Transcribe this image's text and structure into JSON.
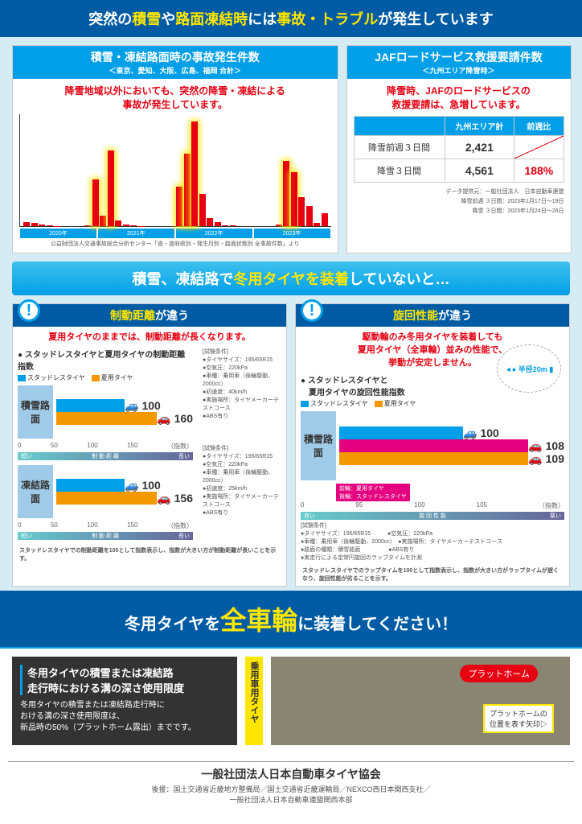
{
  "top_banner": {
    "t1": "突然の",
    "t2": "積雪",
    "t3": "や",
    "t4": "路面凍結時",
    "t5": "には",
    "t6": "事故・トラブル",
    "t7": "が発生しています"
  },
  "p1": {
    "title": "積雪・凍結路面時の事故発生件数",
    "sub": "＜東京、愛知、大阪、広島、福岡 合計＞",
    "lead1": "降雪地域以外においても、突然の降雪・凍結による",
    "lead2": "事故が発生しています。",
    "bars": [
      12,
      8,
      5,
      2,
      1,
      0,
      0,
      0,
      2,
      130,
      28,
      210,
      15,
      5,
      2,
      1,
      0,
      0,
      0,
      0,
      110,
      200,
      290,
      90,
      22,
      12,
      3,
      2,
      0,
      0,
      0,
      0,
      0,
      5,
      180,
      150,
      80,
      55,
      10,
      35
    ],
    "hl": [
      9,
      11,
      20,
      21,
      22,
      34,
      35
    ],
    "years": [
      "2020年",
      "2021年",
      "2022年",
      "2023年"
    ],
    "src": "公益財団法人交通事故総合分析センター「道・道府県別・発生月別・路面状態別 全事故件数」より"
  },
  "p2": {
    "title": "JAFロードサービス救援要請件数",
    "sub": "＜九州エリア降雪時＞",
    "lead1": "降雪時、JAFのロードサービスの",
    "lead2": "救援要請は、急増しています。",
    "col1": "九州エリア計",
    "col2": "前週比",
    "r1": "降雪前週３日間",
    "v1": "2,421",
    "r2": "降雪３日間",
    "v2": "4,561",
    "pct": "188%",
    "n1": "データ提供元：一般社団法人　日本自動車連盟",
    "n2": "降雪前週 ３日間：2023年1月17日〜19日",
    "n3": "降雪 ３日間：2023年1月24日〜26日"
  },
  "b2": {
    "t1": "積雪、凍結路で",
    "t2": "冬用タイヤを装着",
    "t3": "していないと…"
  },
  "pL": {
    "head_t1": "制動距離",
    "head_t2": "が違う",
    "lead": "夏用タイヤのままでは、制動距離が長くなります。",
    "sub": "● スタッドレスタイヤと夏用タイヤの制動距離指数",
    "lg1": "スタッドレスタイヤ",
    "lg2": "夏用タイヤ",
    "r1": {
      "label": "積雪路面",
      "winter": 100,
      "summer": 160
    },
    "r2": {
      "label": "凍結路面",
      "winter": 100,
      "summer": 156
    },
    "ax": [
      "0",
      "50",
      "100",
      "150",
      "（指数）"
    ],
    "gr_l": "短い",
    "gr_c": "制 動 距 離",
    "gr_r": "長い",
    "c1": [
      "[試験条件]",
      "●タイヤサイズ：195/65R15",
      "●空気圧：220kPa",
      "●車種：乗用車（後輪駆動、2000cc）",
      "●初速度：40km/h",
      "●実施場所：タイヤメーカーテストコース",
      "●ABS有り"
    ],
    "c2": [
      "[試験条件]",
      "●タイヤサイズ：195/65R15",
      "●空気圧：220kPa",
      "●車種：乗用車（後輪駆動、2000cc）",
      "●初速度：25km/h",
      "●実施場所：タイヤメーカーテストコース",
      "●ABS有り"
    ],
    "note": "スタッドレスタイヤでの制動距離を100として指数表示し、指数が大きい方が制動距離が長いことを示す。"
  },
  "pR": {
    "head_t1": "旋回性能",
    "head_t2": "が違う",
    "lead1": "駆動輪のみ冬用タイヤを装着しても",
    "lead2": "夏用タイヤ（全車輪）並みの性能で、",
    "lead3": "挙動が安定しません。",
    "sub": "● スタッドレスタイヤと",
    "sub2": "　夏用タイヤの旋回性能指数",
    "radius": "半径20m",
    "r": {
      "label": "積雪路面",
      "winter": 100,
      "mix": 108,
      "summer": 109
    },
    "mix_l1": "前輪：夏用タイヤ",
    "mix_l2": "後輪：スタッドレスタイヤ",
    "ax": [
      "0",
      "95",
      "100",
      "105",
      "（指数）"
    ],
    "gr_l": "良い",
    "gr_c": "旋 回 性 能",
    "gr_r": "悪い",
    "c": [
      "[試験条件]",
      "●タイヤサイズ：195/65R15　　　●空気圧：220kPa",
      "●車種：乗用車（後輪駆動、2000cc）　●実施場所：タイヤメーカーテストコース",
      "●路面の種類：積雪路面　　　　　●ABS有り",
      "●実走行による定常円旋回のラップタイムを計測"
    ],
    "note": "スタッドレスタイヤでのラップタイムを100として指数表示し、指数が大きい方がラップタイムが遅くなり、旋回性能が劣ることを示す。"
  },
  "b3": {
    "t1": "冬用タイヤを",
    "t2": "全車輪",
    "t3": "に装着してください！"
  },
  "bottom": {
    "hd1": "冬用タイヤの積雪または凍結路",
    "hd2": "走行時における溝の深さ使用限度",
    "tx1": "冬用タイヤの積雪または凍結路走行時に",
    "tx2": "おける溝の深さ使用限度は、",
    "tx3": "新品時の50%（プラットホーム露出）までです。",
    "strip": "乗用車用タイヤ",
    "pill": "プラットホーム",
    "call1": "プラットホームの",
    "call2": "位置を表す矢印▷"
  },
  "footer": {
    "org": "一般社団法人日本自動車タイヤ協会",
    "sp": "後援：国土交通省近畿地方整備局／国土交通省近畿運輸局／NEXCO西日本関西支社／",
    "sp2": "一般社団法人日本自動車連盟関西本部"
  }
}
